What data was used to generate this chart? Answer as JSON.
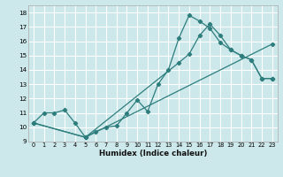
{
  "xlabel": "Humidex (Indice chaleur)",
  "xlim": [
    -0.5,
    23.5
  ],
  "ylim": [
    9,
    18.5
  ],
  "yticks": [
    9,
    10,
    11,
    12,
    13,
    14,
    15,
    16,
    17,
    18
  ],
  "xticks": [
    0,
    1,
    2,
    3,
    4,
    5,
    6,
    7,
    8,
    9,
    10,
    11,
    12,
    13,
    14,
    15,
    16,
    17,
    18,
    19,
    20,
    21,
    22,
    23
  ],
  "bg_color": "#cce8ea",
  "grid_color": "#ffffff",
  "line_color": "#2e7d7d",
  "line1_x": [
    0,
    1,
    2,
    3,
    4,
    5,
    6,
    7,
    8,
    9,
    10,
    11,
    12,
    13,
    14,
    15,
    16,
    17,
    18,
    19,
    20,
    21,
    22,
    23
  ],
  "line1_y": [
    10.3,
    11.0,
    11.0,
    11.2,
    10.3,
    9.3,
    9.7,
    10.0,
    10.1,
    11.0,
    11.9,
    11.1,
    13.0,
    14.0,
    16.2,
    17.8,
    17.4,
    16.9,
    15.9,
    15.4,
    15.0,
    14.7,
    13.4,
    13.4
  ],
  "line2_x": [
    0,
    5,
    23
  ],
  "line2_y": [
    10.3,
    9.3,
    15.8
  ],
  "line3_x": [
    0,
    5,
    14,
    15,
    16,
    17,
    18,
    19,
    20,
    21,
    22,
    23
  ],
  "line3_y": [
    10.3,
    9.3,
    14.5,
    15.1,
    16.4,
    17.2,
    16.4,
    15.4,
    15.0,
    14.7,
    13.4,
    13.4
  ]
}
